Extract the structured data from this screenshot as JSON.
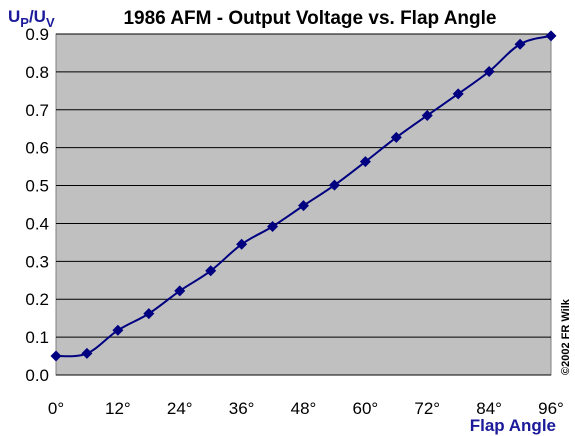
{
  "chart_data": {
    "type": "line",
    "title": "1986 AFM - Output Voltage vs. Flap Angle",
    "ylabel_main": "U",
    "ylabel_sub1": "P",
    "ylabel_sep": "/U",
    "ylabel_sub2": "V",
    "xlabel": "Flap Angle",
    "copyright": "©2002  FR Wilk",
    "xlim": [
      0,
      96
    ],
    "ylim": [
      0,
      0.9
    ],
    "x_ticks": [
      0,
      12,
      24,
      36,
      48,
      60,
      72,
      84,
      96
    ],
    "x_tick_labels": [
      "0°",
      "12°",
      "24°",
      "36°",
      "48°",
      "60°",
      "72°",
      "84°",
      "96°"
    ],
    "y_ticks": [
      0,
      0.1,
      0.2,
      0.3,
      0.4,
      0.5,
      0.6,
      0.7,
      0.8,
      0.9
    ],
    "y_tick_labels": [
      "0.0",
      "0.1",
      "0.2",
      "0.3",
      "0.4",
      "0.5",
      "0.6",
      "0.7",
      "0.8",
      "0.9"
    ],
    "grid": true,
    "plot_background": "#c0c0c0",
    "line_color": "#000080",
    "marker_color": "#000080",
    "series": [
      {
        "x": [
          0,
          6,
          12,
          18,
          24,
          30,
          36,
          42,
          48,
          54,
          60,
          66,
          72,
          78,
          84,
          90,
          96
        ],
        "y": [
          0.05,
          0.057,
          0.118,
          0.162,
          0.222,
          0.275,
          0.345,
          0.392,
          0.447,
          0.501,
          0.563,
          0.627,
          0.685,
          0.742,
          0.801,
          0.873,
          0.895
        ]
      }
    ]
  }
}
